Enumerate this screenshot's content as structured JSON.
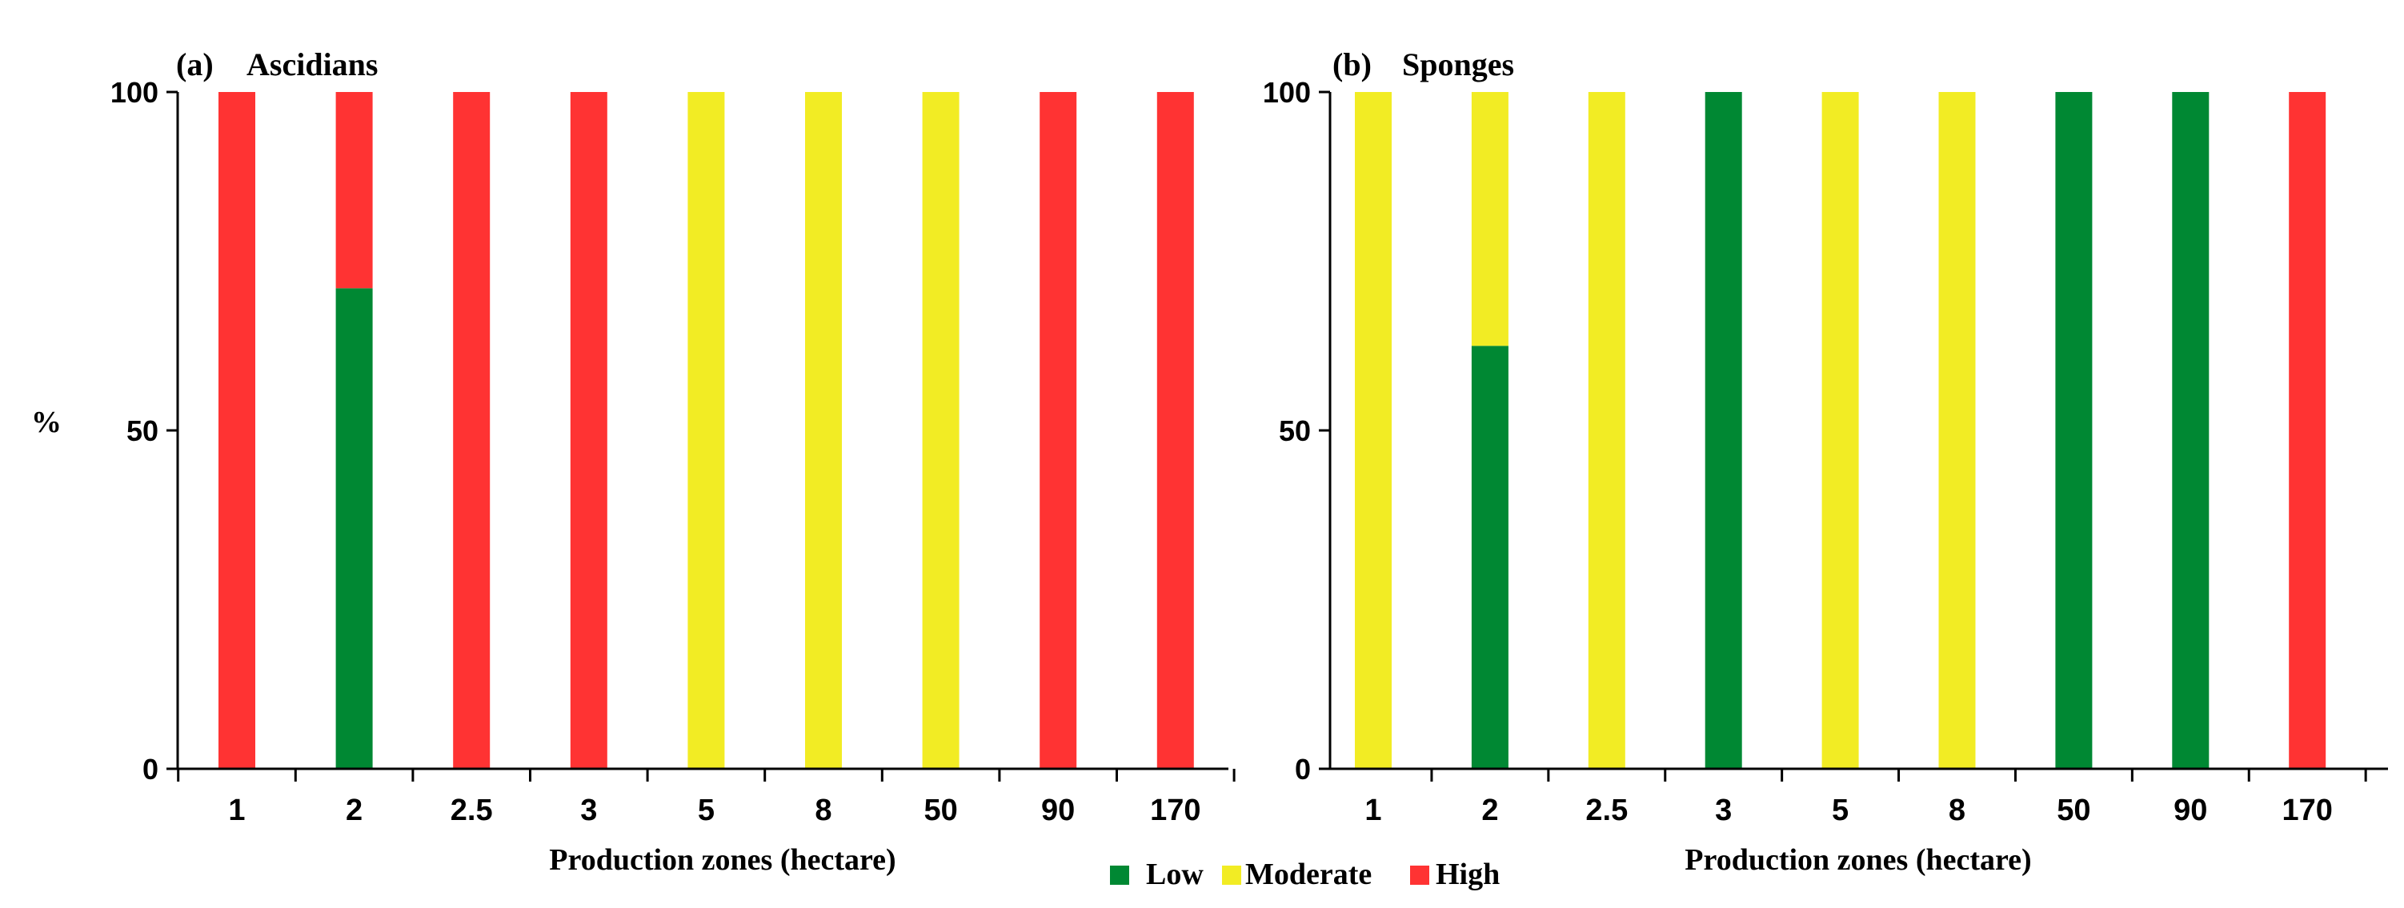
{
  "colors": {
    "Low": "#008833",
    "Moderate": "#f2ec24",
    "High": "#ff3333"
  },
  "legend": {
    "items": [
      "Low",
      "Moderate",
      "High"
    ]
  },
  "chart_data": [
    {
      "type": "bar",
      "stacked": true,
      "panel_label": "(a)",
      "title": "Ascidians",
      "xlabel": "Production zones (hectare)",
      "ylabel": "%",
      "ylim": [
        0,
        100
      ],
      "yticks": [
        "0",
        "50",
        "100"
      ],
      "categories": [
        "1",
        "2",
        "2.5",
        "3",
        "5",
        "8",
        "50",
        "90",
        "170"
      ],
      "series": [
        {
          "name": "Low",
          "values": [
            0,
            71,
            0,
            0,
            0,
            0,
            0,
            0,
            0
          ]
        },
        {
          "name": "Moderate",
          "values": [
            0,
            0,
            0,
            0,
            100,
            100,
            100,
            0,
            0
          ]
        },
        {
          "name": "High",
          "values": [
            100,
            29,
            100,
            100,
            0,
            0,
            0,
            100,
            100
          ]
        }
      ]
    },
    {
      "type": "bar",
      "stacked": true,
      "panel_label": "(b)",
      "title": "Sponges",
      "xlabel": "Production zones (hectare)",
      "ylabel": "",
      "ylim": [
        0,
        100
      ],
      "yticks": [
        "0",
        "50",
        "100"
      ],
      "categories": [
        "1",
        "2",
        "2.5",
        "3",
        "5",
        "8",
        "50",
        "90",
        "170"
      ],
      "series": [
        {
          "name": "Low",
          "values": [
            0,
            62.5,
            0,
            100,
            0,
            0,
            100,
            100,
            0
          ]
        },
        {
          "name": "Moderate",
          "values": [
            100,
            37.5,
            100,
            0,
            100,
            100,
            0,
            0,
            0
          ]
        },
        {
          "name": "High",
          "values": [
            0,
            0,
            0,
            0,
            0,
            0,
            0,
            0,
            100
          ]
        }
      ]
    }
  ]
}
